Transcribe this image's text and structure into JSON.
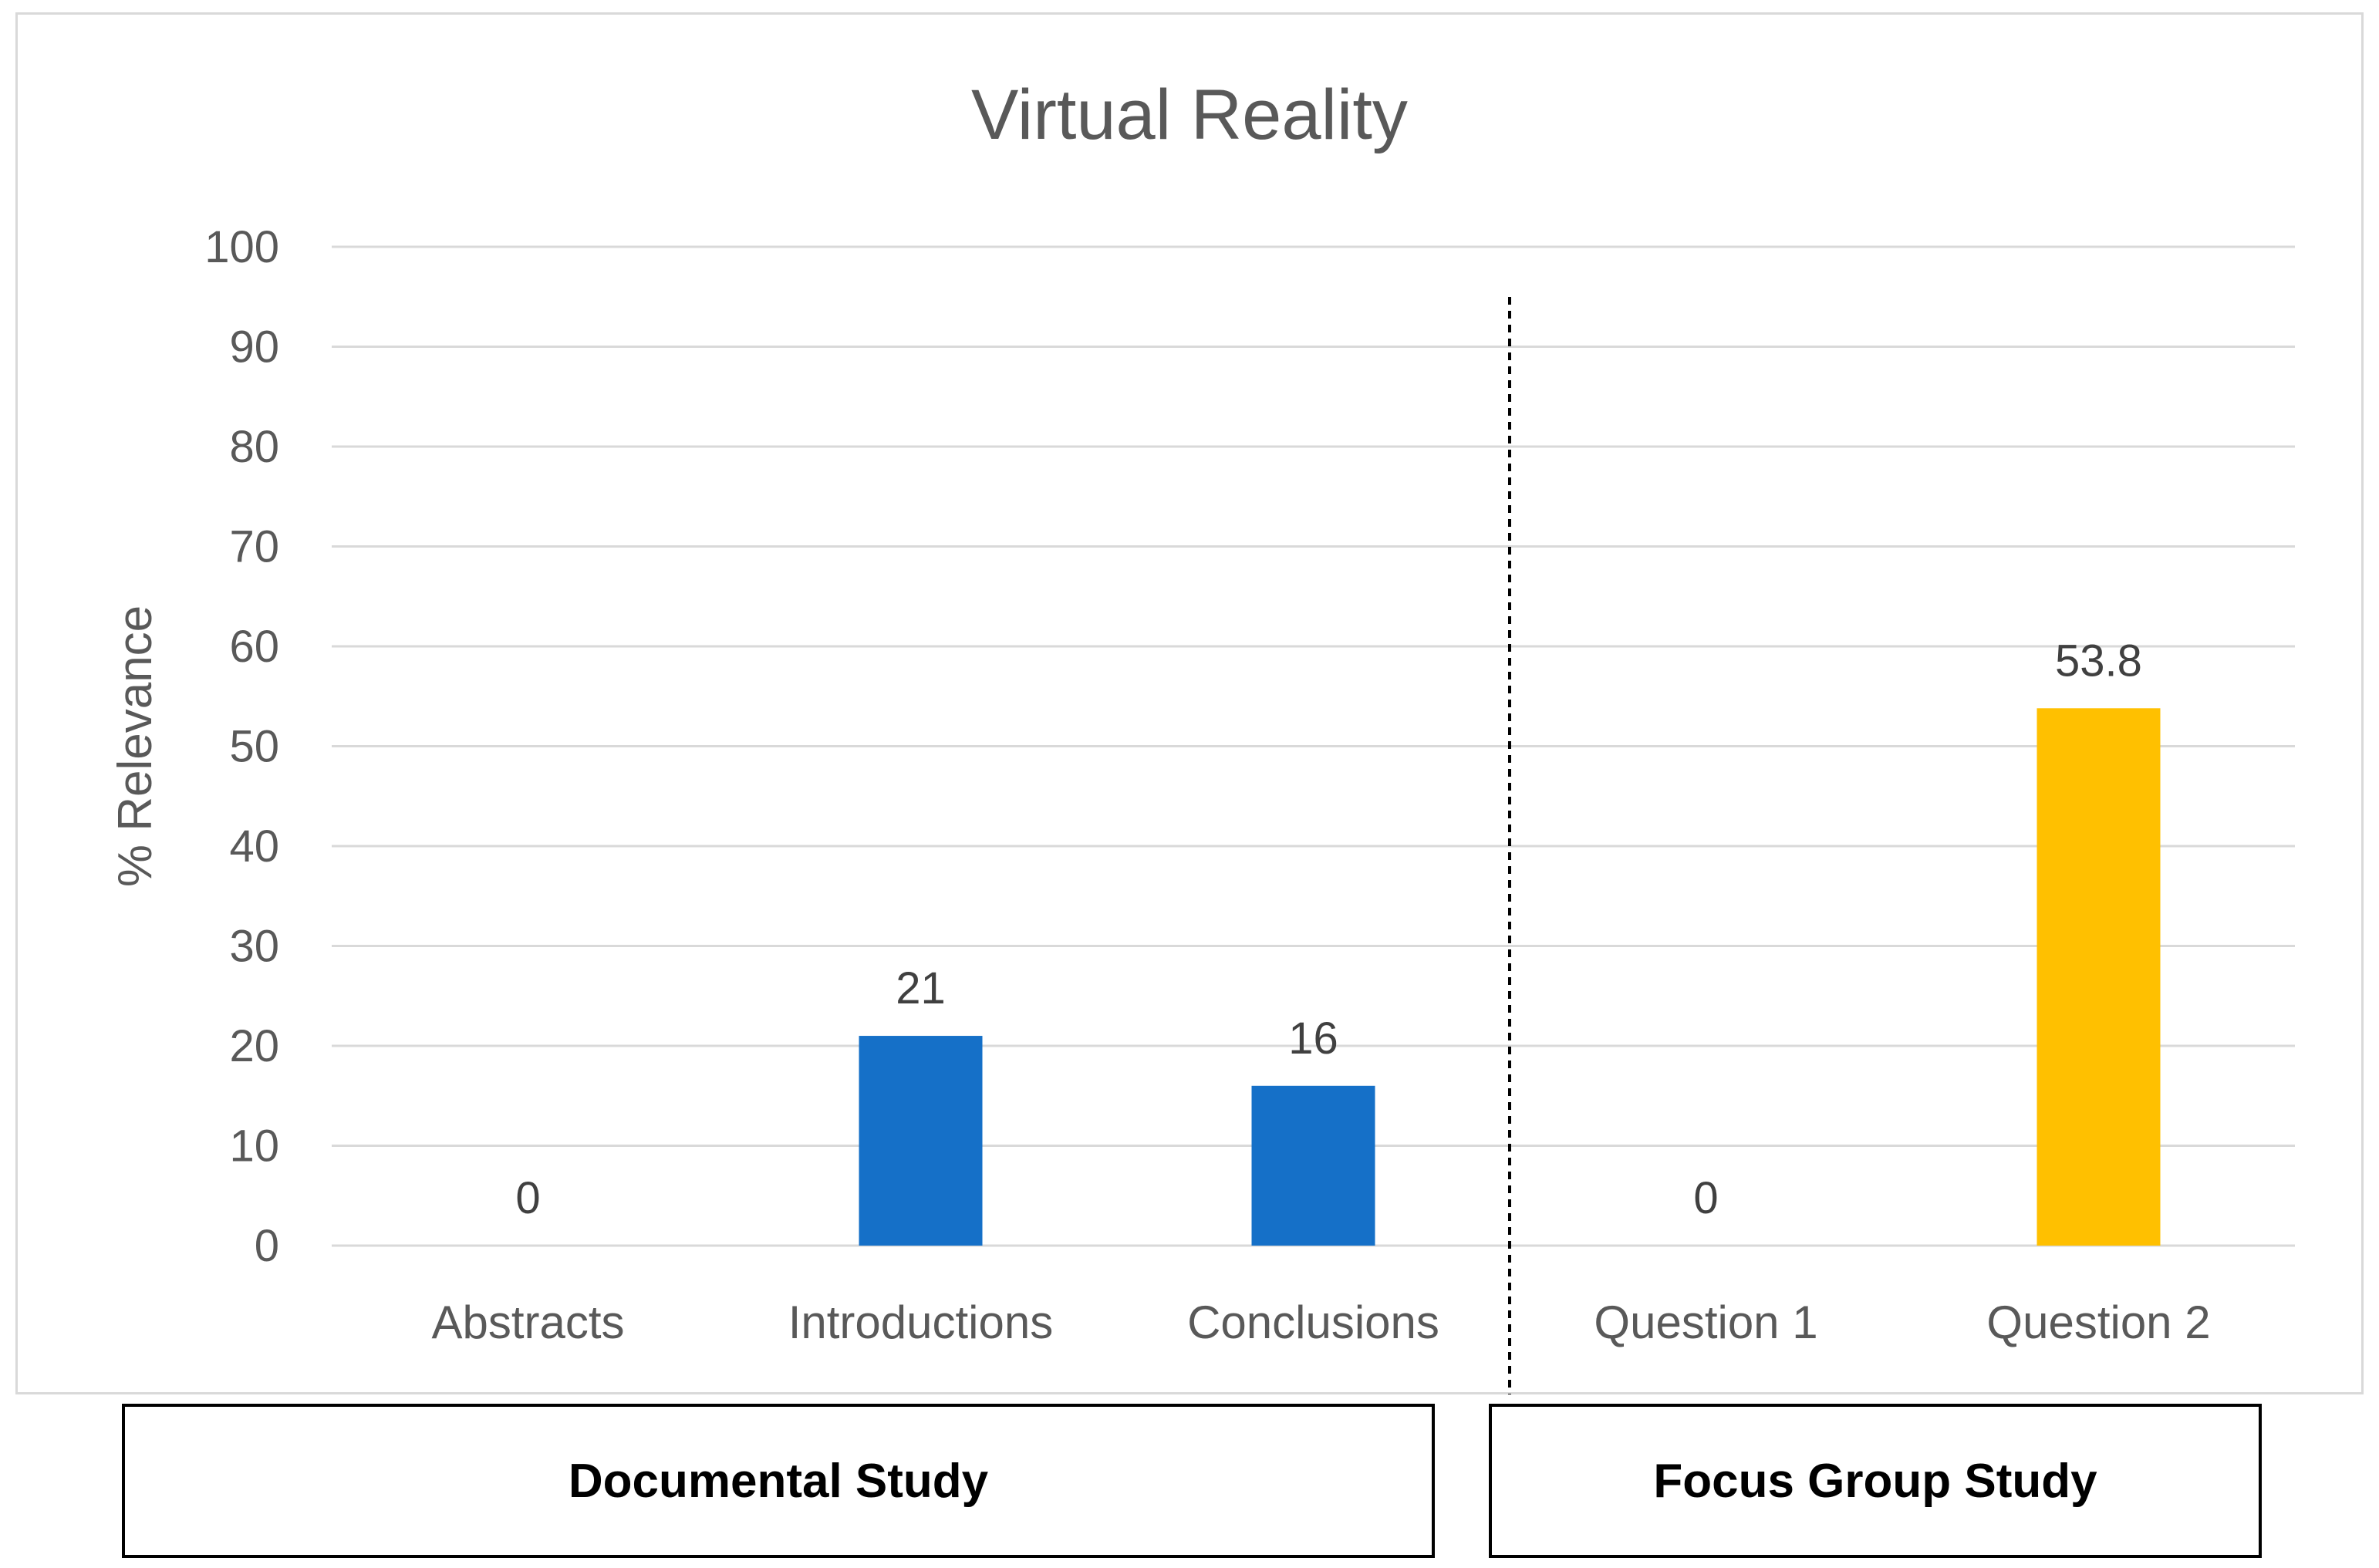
{
  "chart_data": {
    "type": "bar",
    "title": "Virtual Reality",
    "xlabel": "",
    "ylabel": "% Relevance",
    "ylim": [
      0,
      100
    ],
    "yticks": [
      0,
      10,
      20,
      30,
      40,
      50,
      60,
      70,
      80,
      90,
      100
    ],
    "grid": true,
    "legend": "none",
    "categories": [
      "Abstracts",
      "Introductions",
      "Conclusions",
      "Question 1",
      "Question 2"
    ],
    "values": [
      0,
      21,
      16,
      0,
      53.8
    ],
    "data_labels": [
      "0",
      "21",
      "16",
      "0",
      "53.8"
    ],
    "bar_colors": [
      "#1570C8",
      "#1570C8",
      "#1570C8",
      "#1570C8",
      "#FFC000"
    ],
    "groups": [
      {
        "label": "Documental Study",
        "categories": [
          "Abstracts",
          "Introductions",
          "Conclusions"
        ]
      },
      {
        "label": "Focus Group Study",
        "categories": [
          "Question 1",
          "Question 2"
        ]
      }
    ],
    "colors": {
      "text": "#595959",
      "grid": "#d9d9d9",
      "divider": "#000000"
    }
  }
}
